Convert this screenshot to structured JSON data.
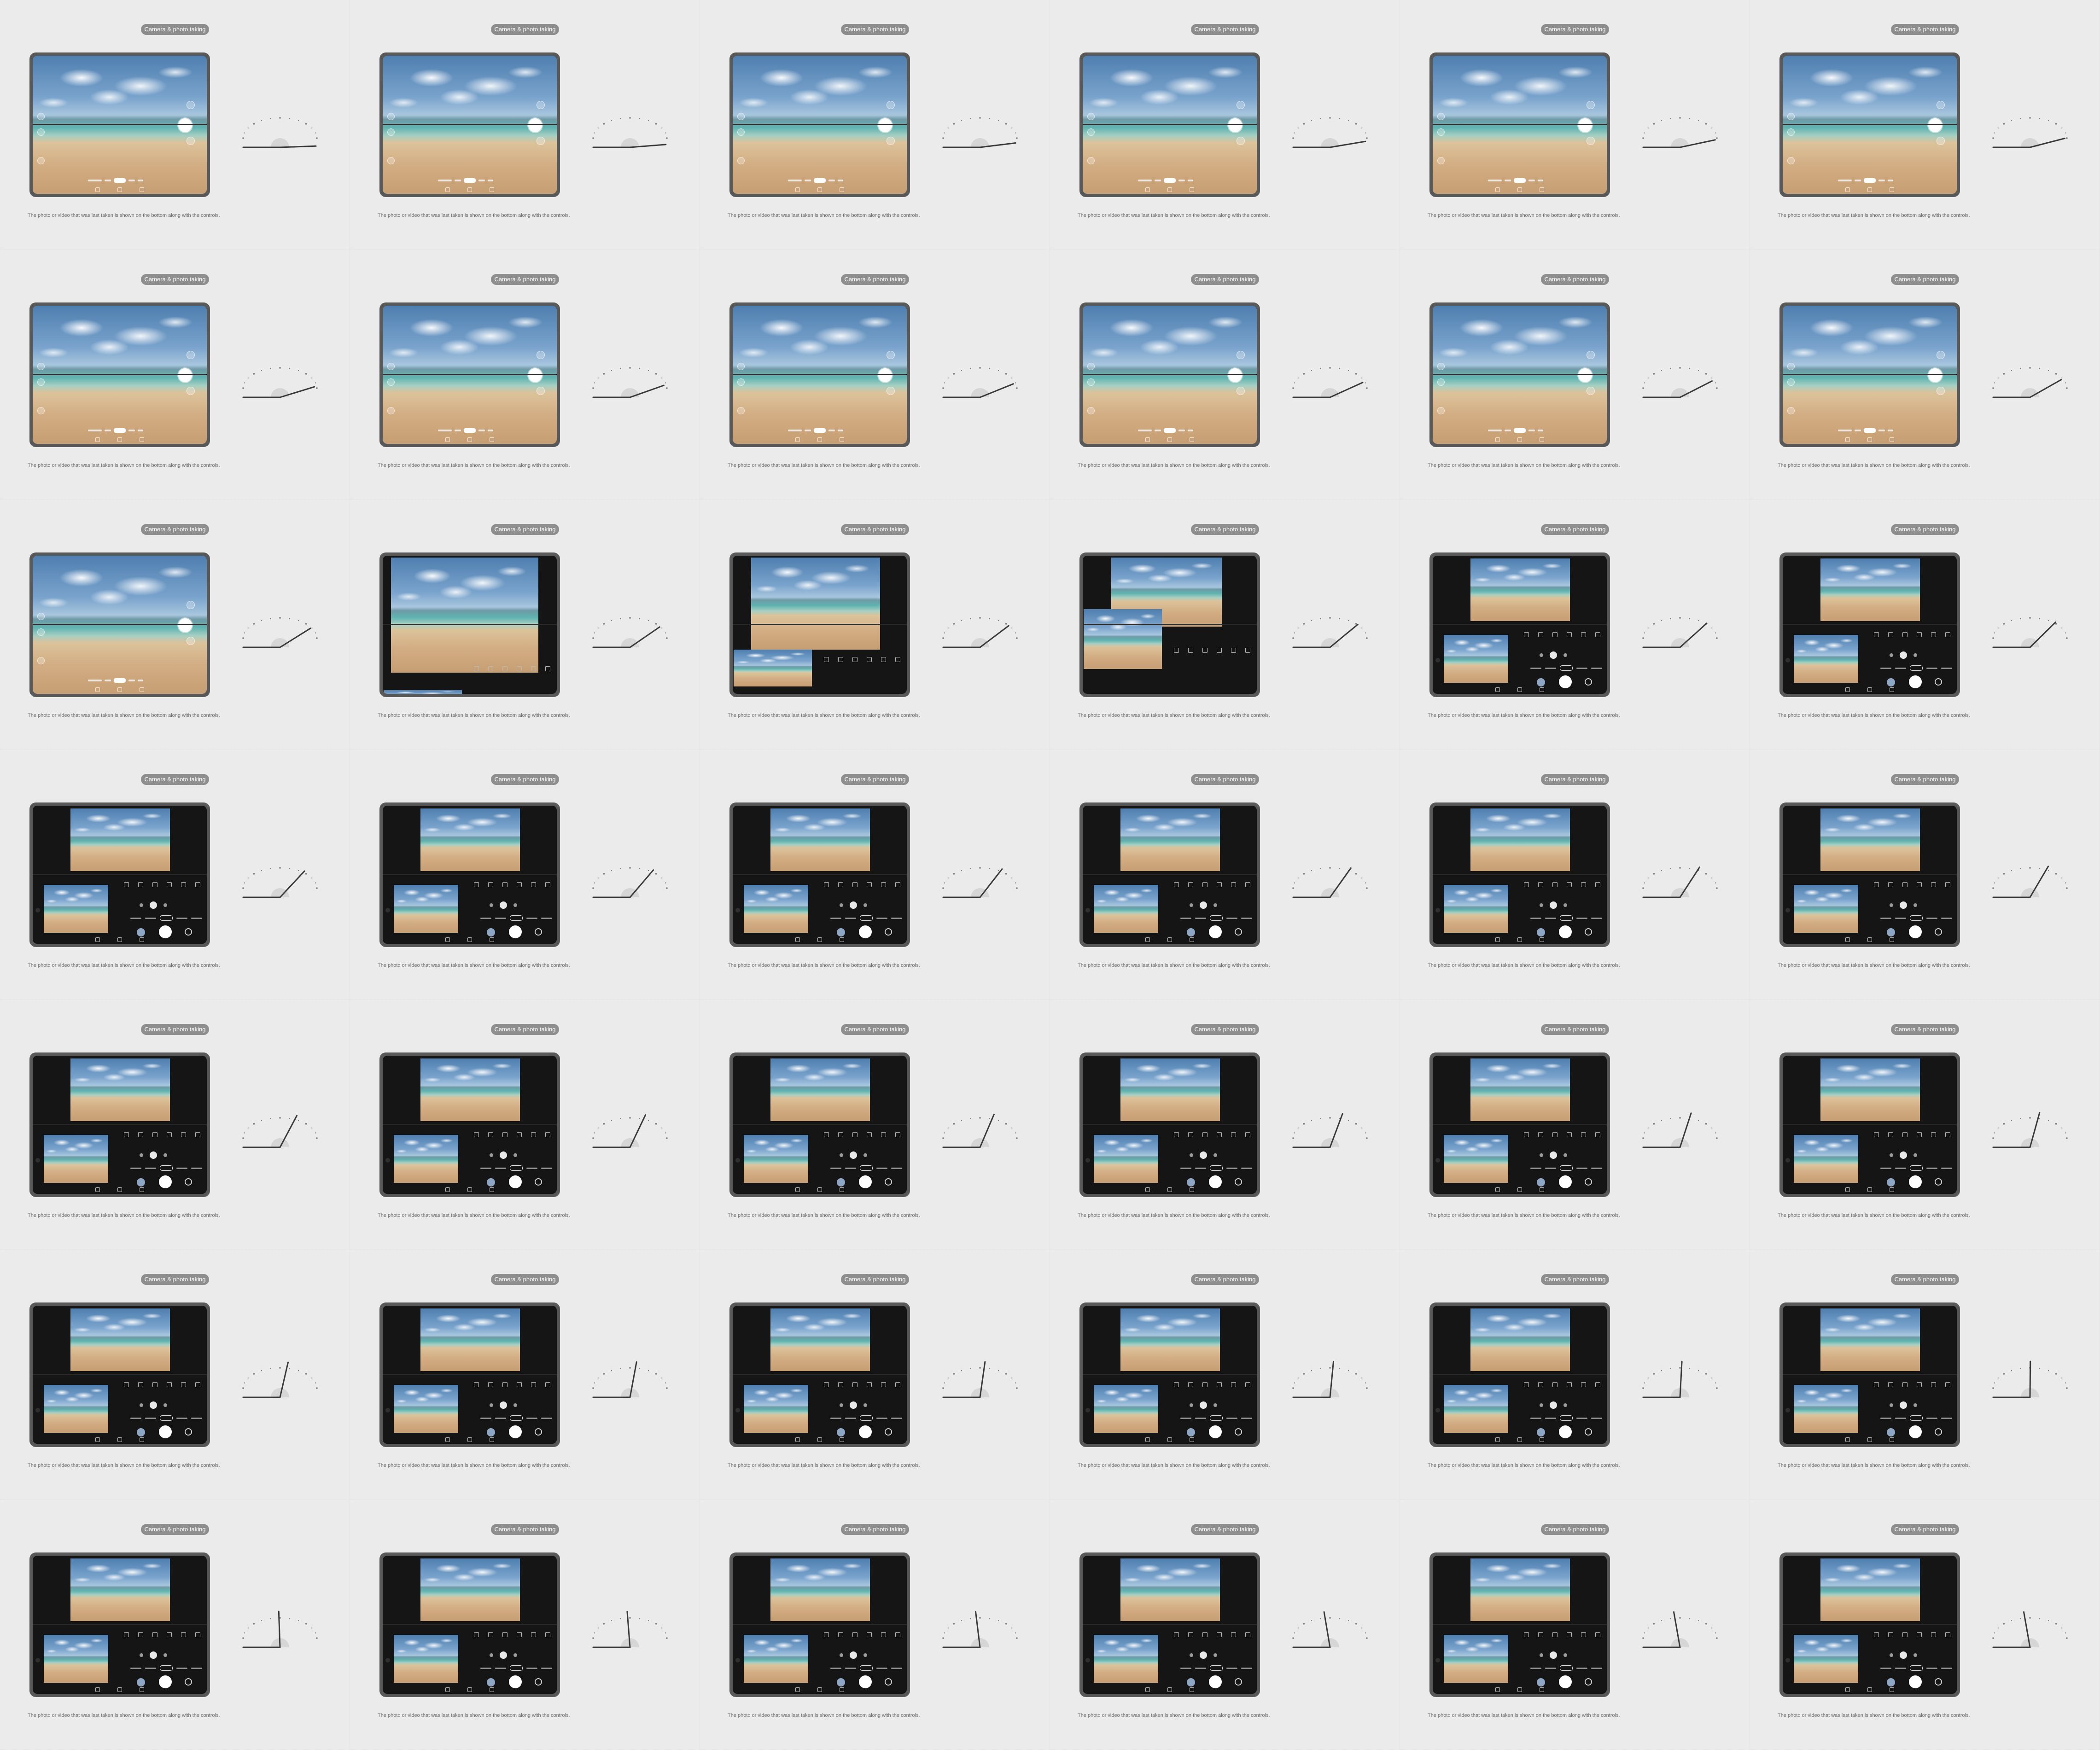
{
  "label": "Camera & photo taking",
  "caption": "The photo or video that was last taken is shown on the bottom along with the controls.",
  "layout": {
    "columns": 6,
    "rows": 7,
    "open_frames": 13,
    "transition_frames": 3
  },
  "colors": {
    "background": "#ebebeb",
    "pill": "#8e8e8e",
    "device_frame": "#5a5a5a",
    "flex_panel": "#151515",
    "sky": "#79a3cc",
    "sea": "#5fb3b0",
    "sand": "#d2ac82"
  }
}
